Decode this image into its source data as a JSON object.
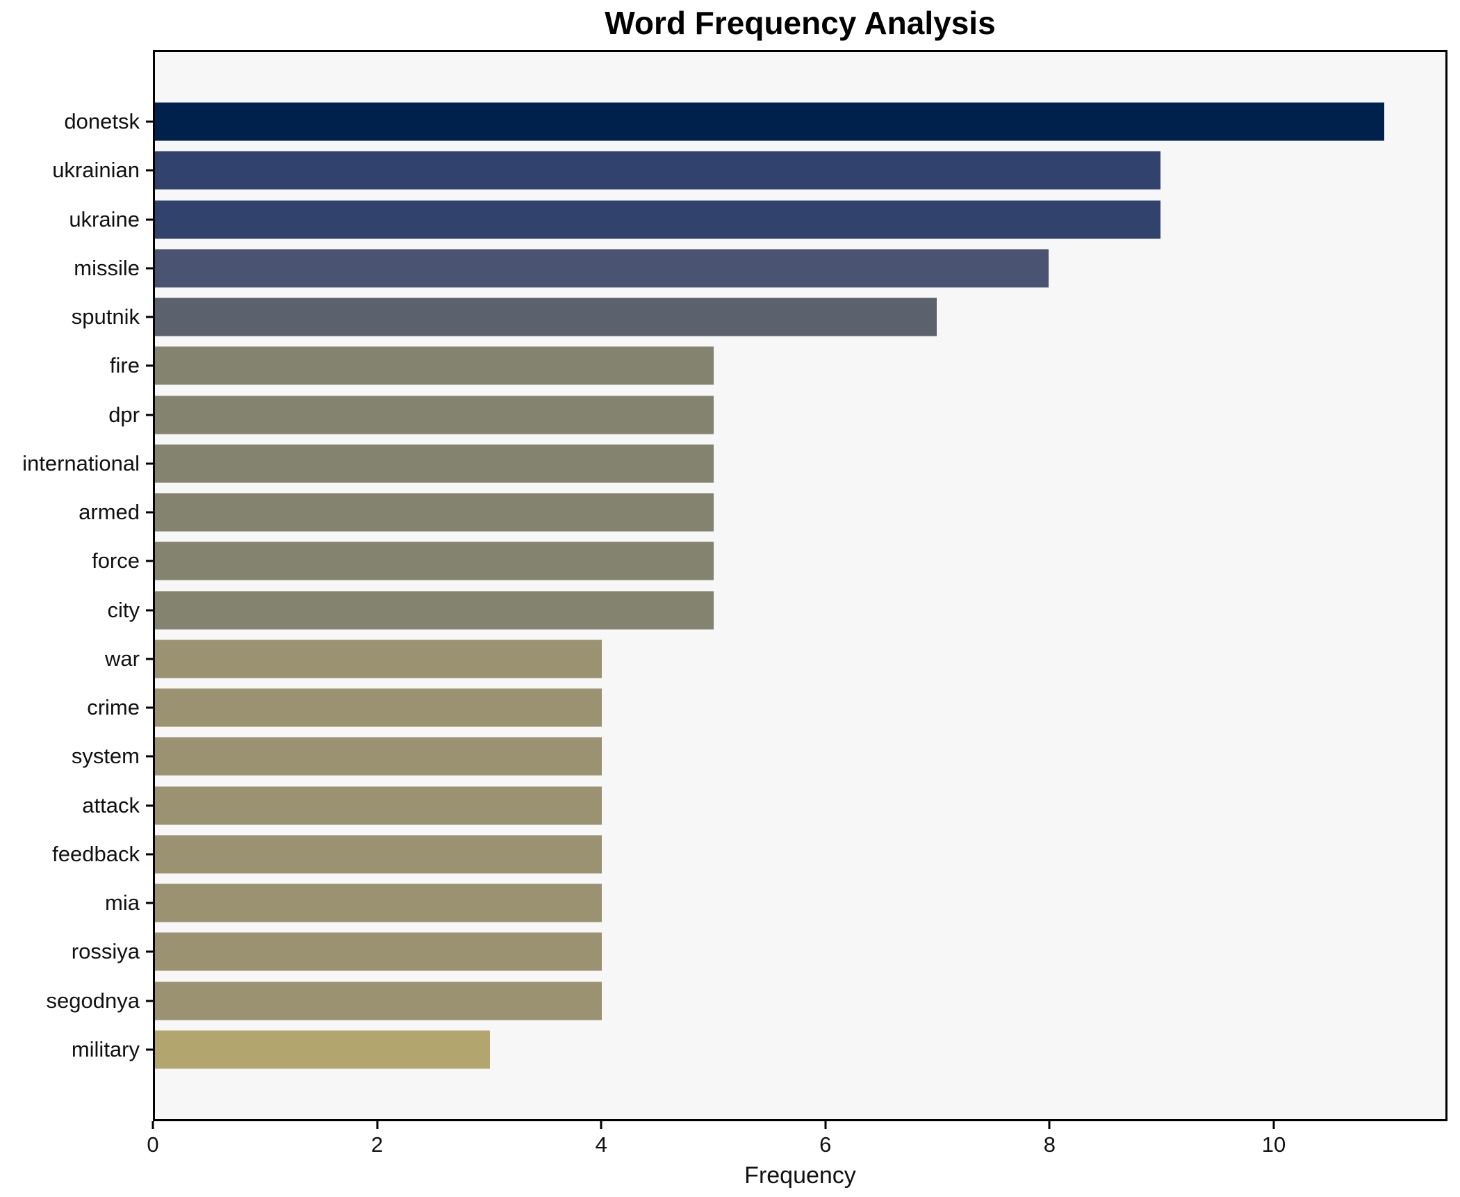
{
  "figure": {
    "background": "#ffffff",
    "plot_background": "#f7f7f8",
    "spine_color": "#000000",
    "text_color": "#111111"
  },
  "chart_data": {
    "type": "bar",
    "orientation": "horizontal",
    "title": "Word Frequency Analysis",
    "xlabel": "Frequency",
    "ylabel": "",
    "categories": [
      "donetsk",
      "ukrainian",
      "ukraine",
      "missile",
      "sputnik",
      "fire",
      "dpr",
      "international",
      "armed",
      "force",
      "city",
      "war",
      "crime",
      "system",
      "attack",
      "feedback",
      "mia",
      "rossiya",
      "segodnya",
      "military"
    ],
    "values": [
      11,
      9,
      9,
      8,
      7,
      5,
      5,
      5,
      5,
      5,
      5,
      4,
      4,
      4,
      4,
      4,
      4,
      4,
      4,
      3
    ],
    "bar_colors": [
      "#01214d",
      "#31426c",
      "#31426c",
      "#4a5372",
      "#5c616e",
      "#848370",
      "#848370",
      "#848370",
      "#848370",
      "#848370",
      "#848370",
      "#9b9272",
      "#9b9272",
      "#9b9272",
      "#9b9272",
      "#9b9272",
      "#9b9272",
      "#9b9272",
      "#9b9272",
      "#b2a66e"
    ],
    "xticks": [
      0,
      2,
      4,
      6,
      8,
      10
    ],
    "xlim": [
      0,
      11.55
    ],
    "grid": false,
    "legend": "none",
    "bar_height_fraction": 0.78
  }
}
